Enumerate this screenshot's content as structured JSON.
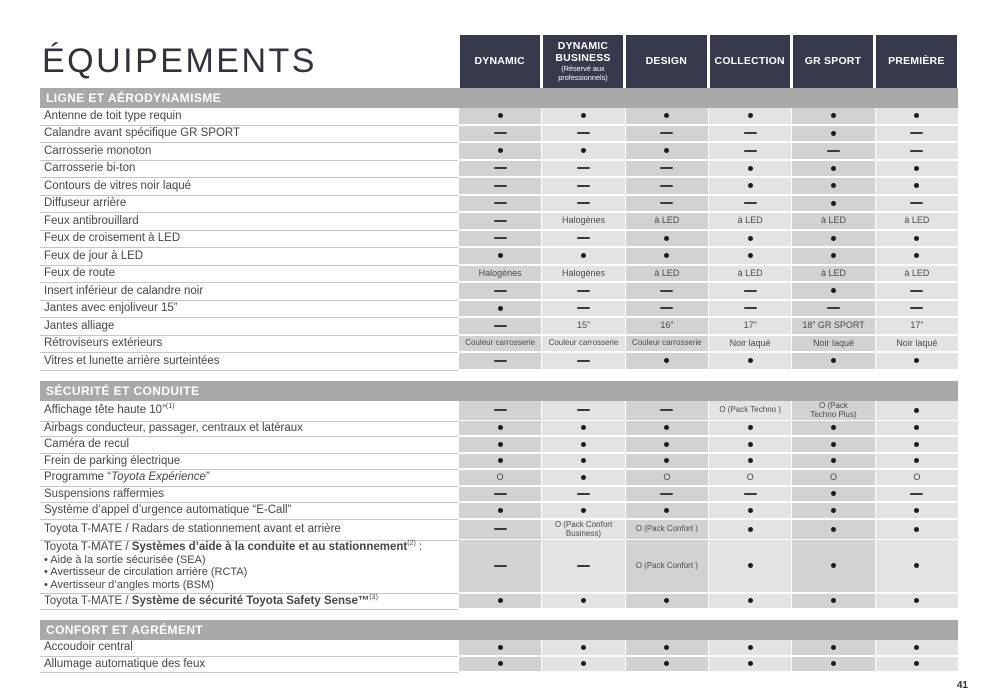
{
  "page": {
    "title": "ÉQUIPEMENTS",
    "page_number": "41"
  },
  "colors": {
    "header_bg": "#363a4c",
    "section_bar_bg": "#a9a9a9",
    "column_shade_dark": "#d2d2d2",
    "column_shade_light": "#e3e3e3"
  },
  "columns": [
    {
      "name": "DYNAMIC"
    },
    {
      "name": "DYNAMIC BUSINESS",
      "subtitle": "(Réservé aux professionnels)"
    },
    {
      "name": "DESIGN"
    },
    {
      "name": "COLLECTION"
    },
    {
      "name": "GR SPORT"
    },
    {
      "name": "PREMIÈRE"
    }
  ],
  "sections": [
    {
      "title": "LIGNE ET AÉRODYNAMISME",
      "rows": [
        {
          "label": "Antenne de toit type requin",
          "cells": [
            "•",
            "•",
            "•",
            "•",
            "•",
            "•"
          ]
        },
        {
          "label": "Calandre avant spécifique GR SPORT",
          "cells": [
            "—",
            "—",
            "—",
            "—",
            "•",
            "—"
          ]
        },
        {
          "label": "Carrosserie monoton",
          "cells": [
            "•",
            "•",
            "•",
            "—",
            "—",
            "—"
          ]
        },
        {
          "label": "Carrosserie bi-ton",
          "cells": [
            "—",
            "—",
            "—",
            "•",
            "•",
            "•"
          ]
        },
        {
          "label": "Contours de vitres noir laqué",
          "cells": [
            "—",
            "—",
            "—",
            "•",
            "•",
            "•"
          ]
        },
        {
          "label": "Diffuseur arrière",
          "cells": [
            "—",
            "—",
            "—",
            "—",
            "•",
            "—"
          ]
        },
        {
          "label": "Feux antibrouillard",
          "cells": [
            "—",
            "Halogènes",
            "à LED",
            "à LED",
            "à LED",
            "à LED"
          ]
        },
        {
          "label": "Feux de croisement à LED",
          "cells": [
            "—",
            "—",
            "•",
            "•",
            "•",
            "•"
          ]
        },
        {
          "label": "Feux de jour à LED",
          "cells": [
            "•",
            "•",
            "•",
            "•",
            "•",
            "•"
          ]
        },
        {
          "label": "Feux de route",
          "cells": [
            "Halogènes",
            "Halogènes",
            "à LED",
            "à LED",
            "à LED",
            "à LED"
          ]
        },
        {
          "label": "Insert inférieur de calandre noir",
          "cells": [
            "—",
            "—",
            "—",
            "—",
            "•",
            "—"
          ]
        },
        {
          "label": "Jantes avec enjoliveur 15”",
          "cells": [
            "•",
            "—",
            "—",
            "—",
            "—",
            "—"
          ]
        },
        {
          "label": "Jantes alliage",
          "cells": [
            "—",
            "15”",
            "16”",
            "17”",
            "18” GR SPORT",
            "17”"
          ]
        },
        {
          "label": "Rétroviseurs extérieurs",
          "cells": [
            "Couleur carrosserie",
            "Couleur carrosserie",
            "Couleur carrosserie",
            "Noir laqué",
            "Noir laqué",
            "Noir laqué"
          ]
        },
        {
          "label": "Vitres et lunette arrière surteintées",
          "cells": [
            "—",
            "—",
            "•",
            "•",
            "•",
            "•"
          ]
        }
      ]
    },
    {
      "title": "SÉCURITÉ ET CONDUITE",
      "rows": [
        {
          "label": "Affichage tête haute 10”",
          "sup": "(1)",
          "cells": [
            "—",
            "—",
            "—",
            "O (Pack Techno )",
            "O (Pack\nTechno Plus)",
            "•"
          ]
        },
        {
          "label": "Airbags conducteur, passager, centraux et latéraux",
          "cells": [
            "•",
            "•",
            "•",
            "•",
            "•",
            "•"
          ]
        },
        {
          "label": "Caméra de recul",
          "cells": [
            "•",
            "•",
            "•",
            "•",
            "•",
            "•"
          ]
        },
        {
          "label": "Frein de parking électrique",
          "cells": [
            "•",
            "•",
            "•",
            "•",
            "•",
            "•"
          ]
        },
        {
          "label": "Programme “",
          "label_italic": "Toyota Expérience",
          "label_post": "”",
          "cells": [
            "O",
            "•",
            "O",
            "O",
            "O",
            "O"
          ]
        },
        {
          "label": "Suspensions raffermies",
          "cells": [
            "—",
            "—",
            "—",
            "—",
            "•",
            "—"
          ]
        },
        {
          "label": "Système d’appel d’urgence automatique “E-Call”",
          "cells": [
            "•",
            "•",
            "•",
            "•",
            "•",
            "•"
          ]
        },
        {
          "label": "Toyota T-MATE / Radars de stationnement avant et arrière",
          "cells": [
            "—",
            "O (Pack Confort\nBusiness)",
            "O (Pack Confort )",
            "•",
            "•",
            "•"
          ]
        },
        {
          "label": "Toyota T-MATE / ",
          "label_strong": "Systèmes d’aide à la conduite et au stationnement",
          "sup": "(2)",
          "label_post": " :",
          "sublines": [
            "• Aide à la sortie sécurisée (SEA)",
            "• Avertisseur de circulation arrière (RCTA)",
            "• Avertisseur d’angles morts (BSM)"
          ],
          "cells": [
            "—",
            "—",
            "O (Pack Confort )",
            "•",
            "•",
            "•"
          ]
        },
        {
          "label": "Toyota T-MATE / ",
          "label_strong": "Système de sécurité Toyota Safety Sense™",
          "sup": "(3)",
          "cells": [
            "•",
            "•",
            "•",
            "•",
            "•",
            "•"
          ]
        }
      ]
    },
    {
      "title": "CONFORT ET AGRÉMENT",
      "rows": [
        {
          "label": "Accoudoir central",
          "cells": [
            "•",
            "•",
            "•",
            "•",
            "•",
            "•"
          ]
        },
        {
          "label": "Allumage automatique des feux",
          "cells": [
            "•",
            "•",
            "•",
            "•",
            "•",
            "•"
          ]
        }
      ]
    }
  ]
}
